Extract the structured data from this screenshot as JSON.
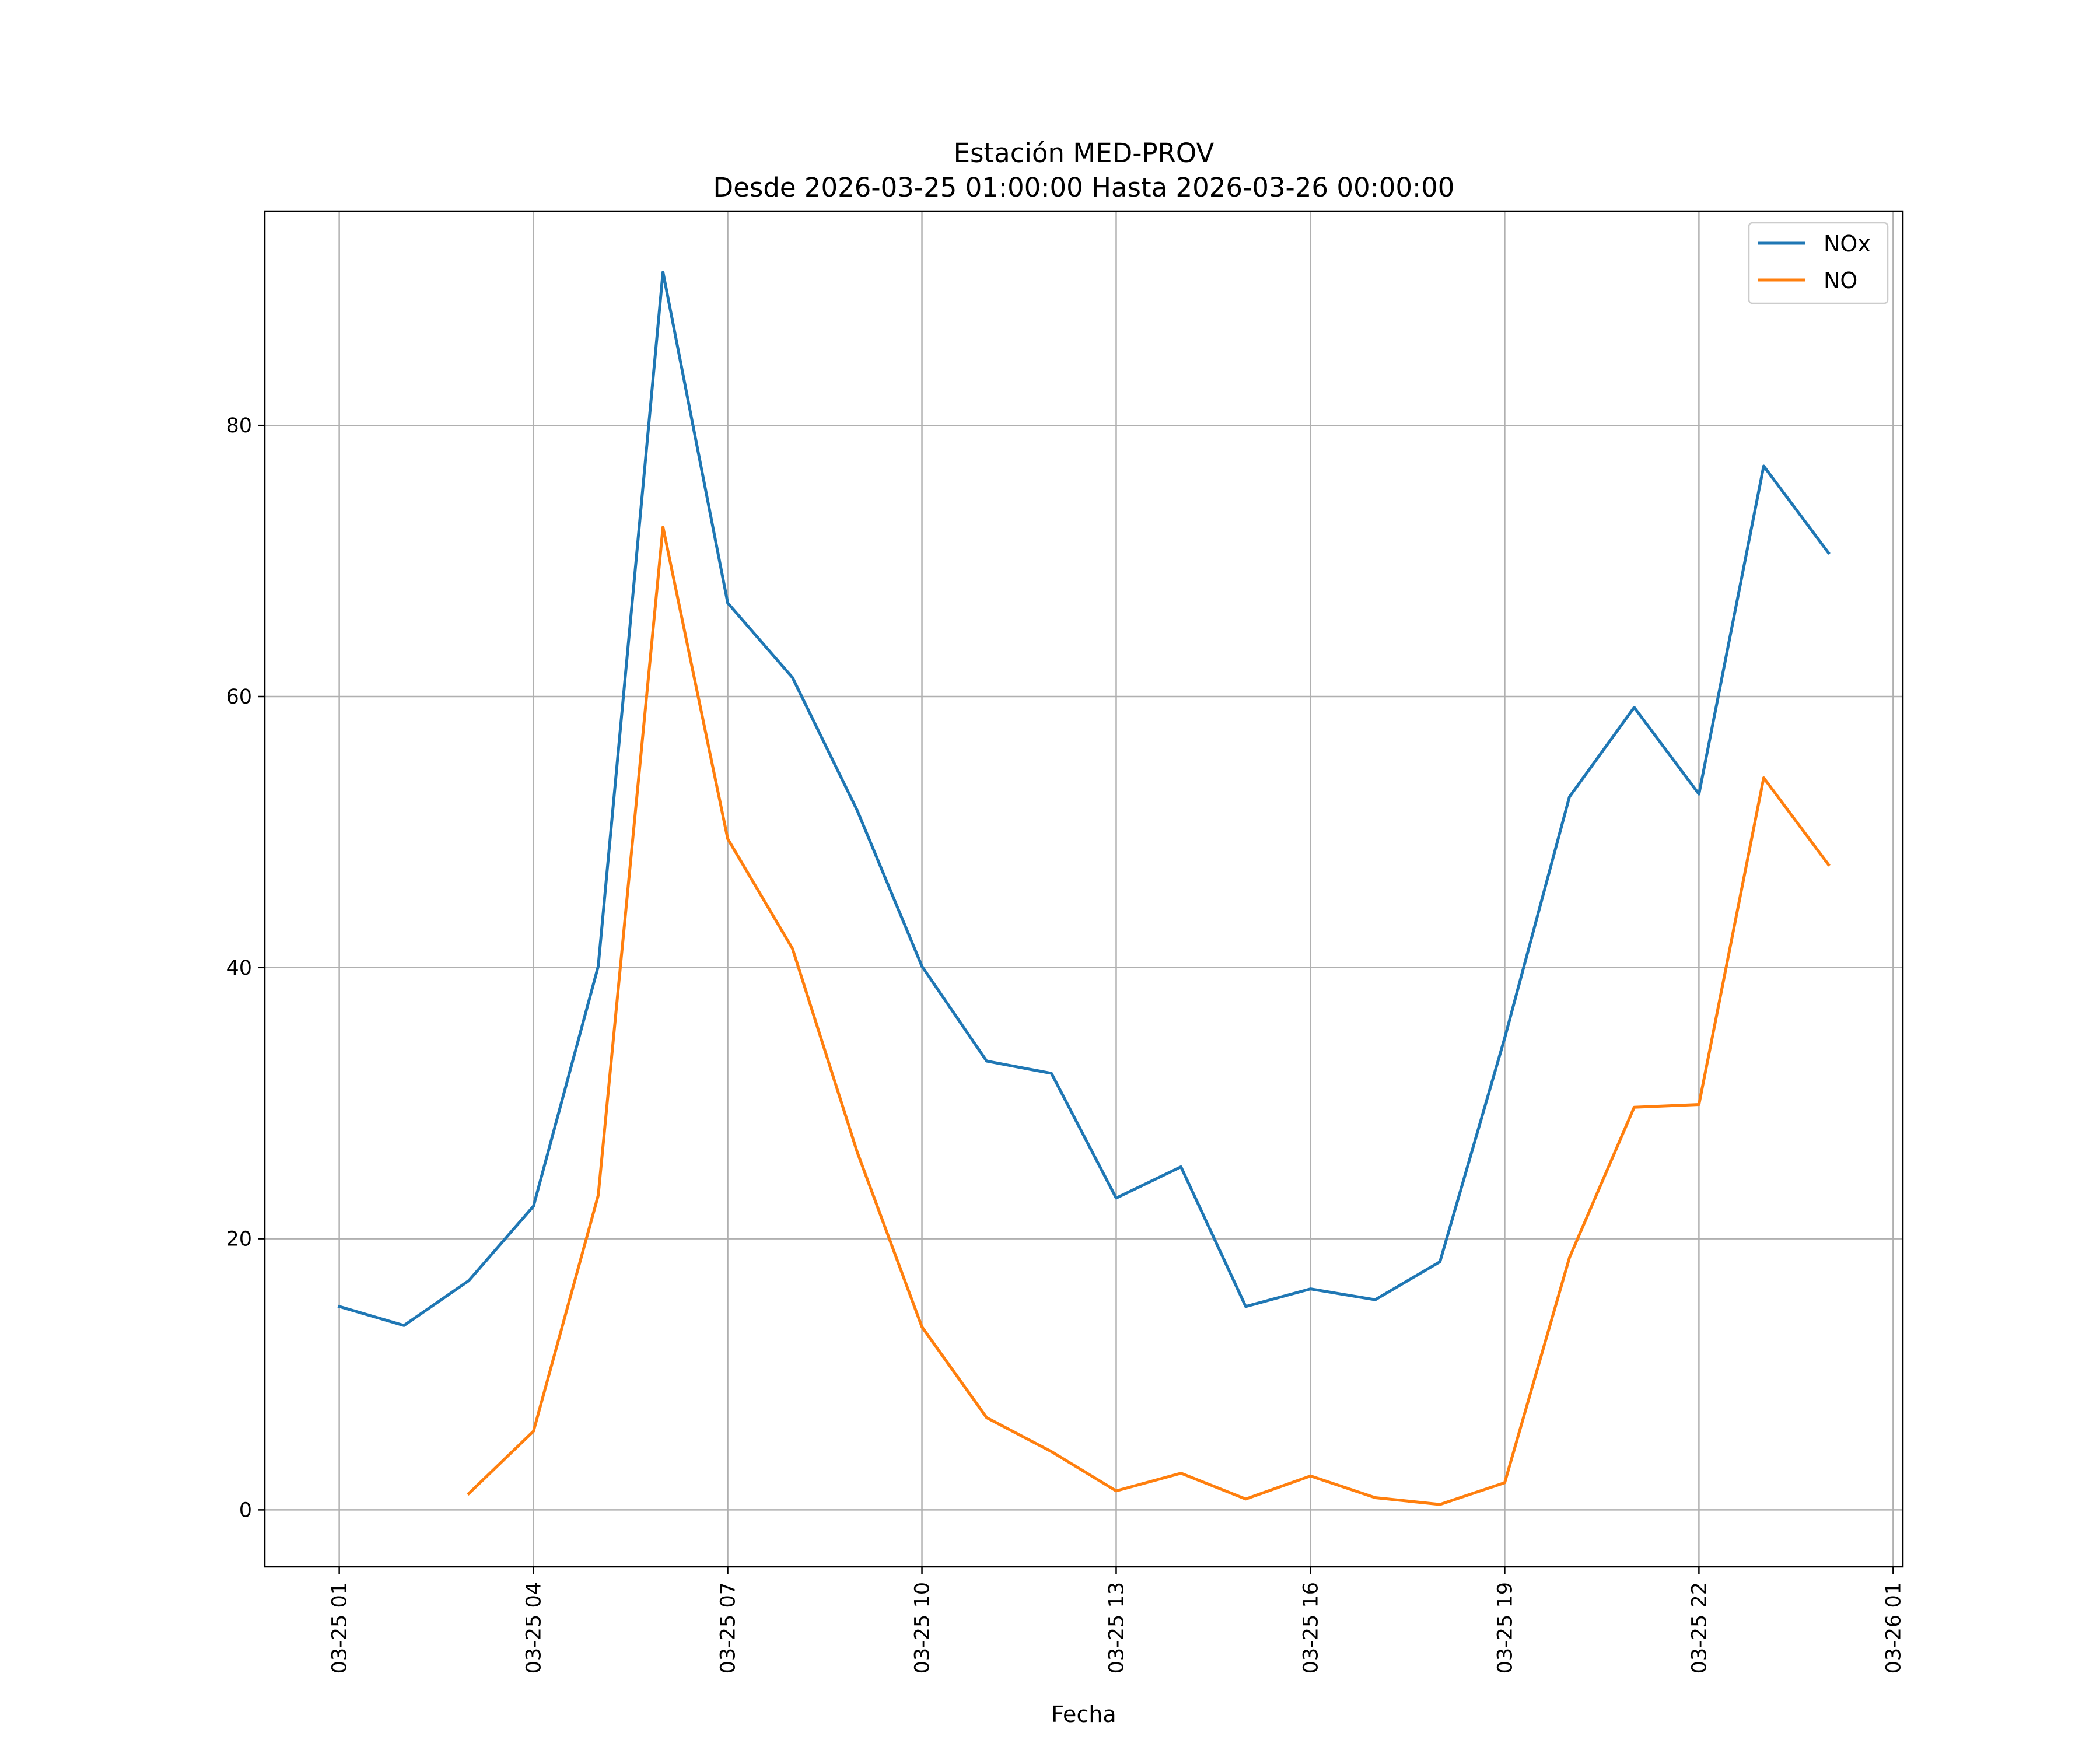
{
  "chart_data": {
    "type": "line",
    "title": "Estación MED-PROV",
    "subtitle": "Desde 2026-03-25 01:00:00 Hasta 2026-03-26 00:00:00",
    "xlabel": "Fecha",
    "ylabel": "",
    "x": [
      "2026-03-25 01:00",
      "2026-03-25 02:00",
      "2026-03-25 03:00",
      "2026-03-25 04:00",
      "2026-03-25 05:00",
      "2026-03-25 06:00",
      "2026-03-25 07:00",
      "2026-03-25 08:00",
      "2026-03-25 09:00",
      "2026-03-25 10:00",
      "2026-03-25 11:00",
      "2026-03-25 12:00",
      "2026-03-25 13:00",
      "2026-03-25 14:00",
      "2026-03-25 15:00",
      "2026-03-25 16:00",
      "2026-03-25 17:00",
      "2026-03-25 18:00",
      "2026-03-25 19:00",
      "2026-03-25 20:00",
      "2026-03-25 21:00",
      "2026-03-25 22:00",
      "2026-03-25 23:00",
      "2026-03-26 00:00"
    ],
    "series": [
      {
        "name": "NOx",
        "color": "#1f77b4",
        "values": [
          15.0,
          13.6,
          16.9,
          22.4,
          40.1,
          91.3,
          66.9,
          61.4,
          51.6,
          40.1,
          33.1,
          32.2,
          23.0,
          25.3,
          15.0,
          16.3,
          15.5,
          18.3,
          34.8,
          52.6,
          59.2,
          52.8,
          77.0,
          70.6
        ]
      },
      {
        "name": "NO",
        "color": "#ff7f0e",
        "values": [
          null,
          null,
          1.2,
          5.8,
          23.2,
          72.5,
          49.5,
          41.4,
          26.4,
          13.5,
          6.8,
          4.3,
          1.4,
          2.7,
          0.8,
          2.5,
          0.9,
          0.4,
          2.0,
          18.6,
          29.7,
          29.9,
          54.0,
          47.6
        ]
      }
    ],
    "xlim": [
      "2026-03-24 23:51",
      "2026-03-26 01:09"
    ],
    "ylim": [
      -4.2,
      95.8
    ],
    "xticks": [
      "2026-03-25 01:00",
      "2026-03-25 04:00",
      "2026-03-25 07:00",
      "2026-03-25 10:00",
      "2026-03-25 13:00",
      "2026-03-25 16:00",
      "2026-03-25 19:00",
      "2026-03-25 22:00",
      "2026-03-26 01:00"
    ],
    "xtick_labels": [
      "03-25 01",
      "03-25 04",
      "03-25 07",
      "03-25 10",
      "03-25 13",
      "03-25 16",
      "03-25 19",
      "03-25 22",
      "03-26 01"
    ],
    "yticks": [
      0,
      20,
      40,
      60,
      80
    ],
    "grid": true,
    "legend": "top-right"
  }
}
